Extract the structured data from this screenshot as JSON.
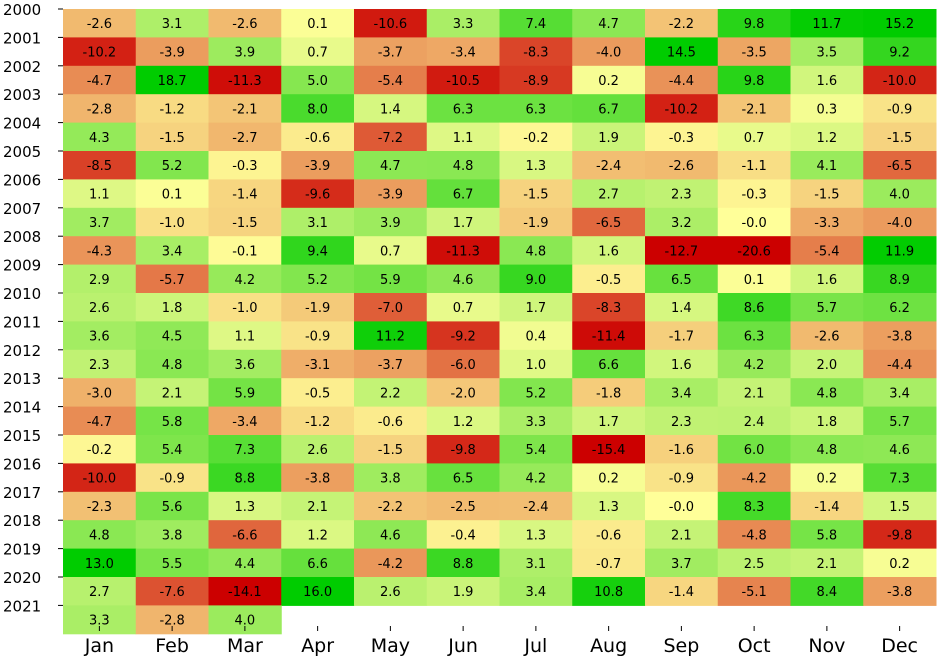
{
  "chart_data": {
    "type": "heatmap",
    "title": "",
    "xlabel": "",
    "ylabel": "",
    "x": [
      "Jan",
      "Feb",
      "Mar",
      "Apr",
      "May",
      "Jun",
      "Jul",
      "Aug",
      "Sep",
      "Oct",
      "Nov",
      "Dec"
    ],
    "y": [
      "2000",
      "2001",
      "2002",
      "2003",
      "2004",
      "2005",
      "2006",
      "2007",
      "2008",
      "2009",
      "2010",
      "2011",
      "2012",
      "2013",
      "2014",
      "2015",
      "2016",
      "2017",
      "2018",
      "2019",
      "2020",
      "2021"
    ],
    "values": [
      [
        -2.6,
        3.1,
        -2.6,
        0.1,
        -10.6,
        3.3,
        7.4,
        4.7,
        -2.2,
        9.8,
        11.7,
        15.2
      ],
      [
        -10.2,
        -3.9,
        3.9,
        0.7,
        -3.7,
        -3.4,
        -8.3,
        -4.0,
        14.5,
        -3.5,
        3.5,
        9.2
      ],
      [
        -4.7,
        18.7,
        -11.3,
        5.0,
        -5.4,
        -10.5,
        -8.9,
        0.2,
        -4.4,
        9.8,
        1.6,
        -10.0
      ],
      [
        -2.8,
        -1.2,
        -2.1,
        8.0,
        1.4,
        6.3,
        6.3,
        6.7,
        -10.2,
        -2.1,
        0.3,
        -0.9
      ],
      [
        4.3,
        -1.5,
        -2.7,
        -0.6,
        -7.2,
        1.1,
        -0.2,
        1.9,
        -0.3,
        0.7,
        1.2,
        -1.5
      ],
      [
        -8.5,
        5.2,
        -0.3,
        -3.9,
        4.7,
        4.8,
        1.3,
        -2.4,
        -2.6,
        -1.1,
        4.1,
        -6.5
      ],
      [
        1.1,
        0.1,
        -1.4,
        -9.6,
        -3.9,
        6.7,
        -1.5,
        2.7,
        2.3,
        -0.3,
        -1.5,
        4.0
      ],
      [
        3.7,
        -1.0,
        -1.5,
        3.1,
        3.9,
        1.7,
        -1.9,
        -6.5,
        3.2,
        -0.0,
        -3.3,
        -4.0
      ],
      [
        -4.3,
        3.4,
        -0.1,
        9.4,
        0.7,
        -11.3,
        4.8,
        1.6,
        -12.7,
        -20.6,
        -5.4,
        11.9
      ],
      [
        2.9,
        -5.7,
        4.2,
        5.2,
        5.9,
        4.6,
        9.0,
        -0.5,
        6.5,
        0.1,
        1.6,
        8.9
      ],
      [
        2.6,
        1.8,
        -1.0,
        -1.9,
        -7.0,
        0.7,
        1.7,
        -8.3,
        1.4,
        8.6,
        5.7,
        6.2
      ],
      [
        3.6,
        4.5,
        1.1,
        -0.9,
        11.2,
        -9.2,
        0.4,
        -11.4,
        -1.7,
        6.3,
        -2.6,
        -3.8
      ],
      [
        2.3,
        4.8,
        3.6,
        -3.1,
        -3.7,
        -6.0,
        1.0,
        6.6,
        1.6,
        4.2,
        2.0,
        -4.4
      ],
      [
        -3.0,
        2.1,
        5.9,
        -0.5,
        2.2,
        -2.0,
        5.2,
        -1.8,
        3.4,
        2.1,
        4.8,
        3.4
      ],
      [
        -4.7,
        5.8,
        -3.4,
        -1.2,
        -0.6,
        1.2,
        3.3,
        1.7,
        2.3,
        2.4,
        1.8,
        5.7
      ],
      [
        -0.2,
        5.4,
        7.3,
        2.6,
        -1.5,
        -9.8,
        5.4,
        -15.4,
        -1.6,
        6.0,
        4.8,
        4.6
      ],
      [
        -10.0,
        -0.9,
        8.8,
        -3.8,
        3.8,
        6.5,
        4.2,
        0.2,
        -0.9,
        -4.2,
        0.2,
        7.3
      ],
      [
        -2.3,
        5.6,
        1.3,
        2.1,
        -2.2,
        -2.5,
        -2.4,
        1.3,
        -0.0,
        8.3,
        -1.4,
        1.5
      ],
      [
        4.8,
        3.8,
        -6.6,
        1.2,
        4.6,
        -0.4,
        1.3,
        -0.6,
        2.1,
        -4.8,
        5.8,
        -9.8
      ],
      [
        13.0,
        5.5,
        4.4,
        6.6,
        -4.2,
        8.8,
        3.1,
        -0.7,
        3.7,
        2.5,
        2.1,
        0.2
      ],
      [
        2.7,
        -7.6,
        -14.1,
        16.0,
        2.6,
        1.9,
        3.4,
        10.8,
        -1.4,
        -5.1,
        8.4,
        -3.8
      ],
      [
        3.3,
        -2.8,
        4.0,
        null,
        null,
        null,
        null,
        null,
        null,
        null,
        null,
        null
      ]
    ],
    "color_scale": {
      "type": "diverging",
      "low": "#cc0000",
      "mid": "#ffff99",
      "high": "#00cc00"
    },
    "legend": "none",
    "grid": false
  }
}
